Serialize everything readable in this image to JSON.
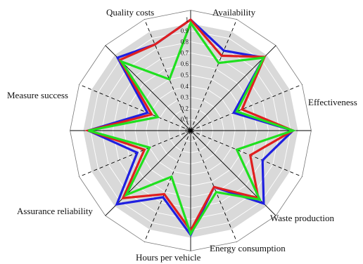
{
  "chart_data": {
    "type": "radar",
    "title": "",
    "axes": [
      "Availability",
      "Effectiveness",
      "Waste production",
      "Energy consumption",
      "Hours per vehicle",
      "Assurance reliability",
      "Measure success",
      "Quality costs"
    ],
    "scale": {
      "min": 0,
      "max": 1,
      "ticks": [
        "0",
        "0.1",
        "0.2",
        "0.3",
        "0.4",
        "0.5",
        "0.6",
        "0.7",
        "0.8",
        "0.9",
        "1"
      ]
    },
    "grid": true,
    "legend": "none",
    "series": [
      {
        "color": "#1f1fe0",
        "values": [
          1.0,
          0.78,
          0.93,
          0.42,
          0.92,
          0.7,
          0.93,
          0.55,
          0.94,
          0.65,
          0.94,
          0.52,
          0.92,
          0.42,
          0.93,
          0.84
        ]
      },
      {
        "color": "#e01f1f",
        "values": [
          1.0,
          0.73,
          0.94,
          0.5,
          0.92,
          0.58,
          0.86,
          0.55,
          0.9,
          0.62,
          0.86,
          0.45,
          0.92,
          0.38,
          0.9,
          0.84
        ]
      },
      {
        "color": "#1fe01f",
        "values": [
          0.97,
          0.66,
          0.93,
          0.45,
          0.92,
          0.45,
          0.88,
          0.6,
          0.93,
          0.45,
          0.82,
          0.4,
          0.92,
          0.32,
          0.88,
          0.5
        ]
      }
    ]
  }
}
